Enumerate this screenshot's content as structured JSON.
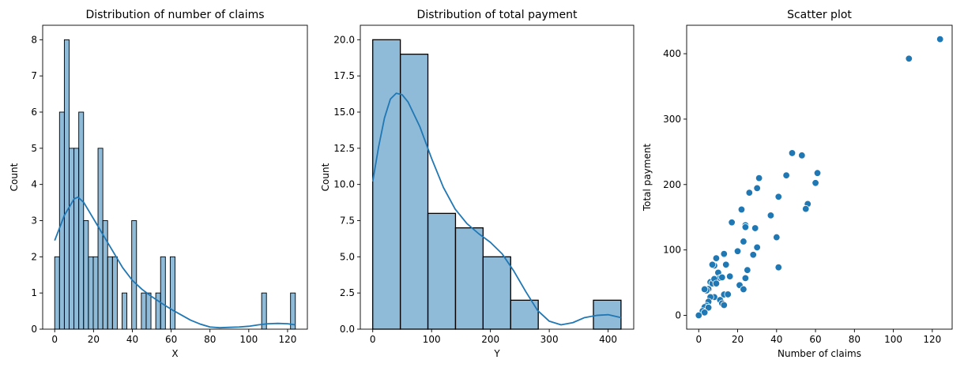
{
  "chart_data": [
    {
      "type": "bar",
      "title": "Distribution of number of claims",
      "xlabel": "X",
      "ylabel": "Count",
      "xlim": [
        -6.2,
        130.2
      ],
      "ylim": [
        0,
        8.4
      ],
      "xticks": [
        0,
        20,
        40,
        60,
        80,
        100,
        120
      ],
      "yticks": [
        0,
        1,
        2,
        3,
        4,
        5,
        6,
        7,
        8
      ],
      "bin_width": 2.48,
      "bins": [
        {
          "x0": 0.0,
          "count": 2
        },
        {
          "x0": 2.48,
          "count": 6
        },
        {
          "x0": 4.96,
          "count": 8
        },
        {
          "x0": 7.44,
          "count": 5
        },
        {
          "x0": 9.92,
          "count": 5
        },
        {
          "x0": 12.4,
          "count": 6
        },
        {
          "x0": 14.88,
          "count": 3
        },
        {
          "x0": 17.36,
          "count": 2
        },
        {
          "x0": 19.84,
          "count": 2
        },
        {
          "x0": 22.32,
          "count": 5
        },
        {
          "x0": 24.8,
          "count": 3
        },
        {
          "x0": 27.28,
          "count": 2
        },
        {
          "x0": 29.76,
          "count": 2
        },
        {
          "x0": 34.72,
          "count": 1
        },
        {
          "x0": 39.68,
          "count": 3
        },
        {
          "x0": 44.64,
          "count": 1
        },
        {
          "x0": 47.12,
          "count": 1
        },
        {
          "x0": 52.08,
          "count": 1
        },
        {
          "x0": 54.56,
          "count": 2
        },
        {
          "x0": 59.52,
          "count": 2
        },
        {
          "x0": 106.64,
          "count": 1
        },
        {
          "x0": 121.52,
          "count": 1
        }
      ],
      "kde": {
        "x": [
          0,
          5,
          10,
          12,
          15,
          20,
          25,
          30,
          35,
          40,
          45,
          50,
          55,
          60,
          65,
          70,
          75,
          80,
          85,
          90,
          95,
          100,
          105,
          110,
          115,
          120,
          124
        ],
        "y": [
          2.45,
          3.15,
          3.6,
          3.65,
          3.5,
          3.05,
          2.6,
          2.15,
          1.7,
          1.35,
          1.1,
          0.9,
          0.72,
          0.55,
          0.4,
          0.25,
          0.14,
          0.06,
          0.04,
          0.05,
          0.06,
          0.08,
          0.12,
          0.15,
          0.16,
          0.15,
          0.12
        ]
      },
      "color": "#1f77b4"
    },
    {
      "type": "bar",
      "title": "Distribution of total payment",
      "xlabel": "Y",
      "ylabel": "Count",
      "xlim": [
        -21.1,
        443.5
      ],
      "ylim": [
        0,
        21
      ],
      "xticks": [
        0,
        100,
        200,
        300,
        400
      ],
      "yticks": [
        0.0,
        2.5,
        5.0,
        7.5,
        10.0,
        12.5,
        15.0,
        17.5,
        20.0
      ],
      "bin_width": 46.88,
      "bins": [
        {
          "x0": 0.0,
          "count": 20
        },
        {
          "x0": 46.88,
          "count": 19
        },
        {
          "x0": 93.76,
          "count": 8
        },
        {
          "x0": 140.64,
          "count": 7
        },
        {
          "x0": 187.52,
          "count": 5
        },
        {
          "x0": 234.4,
          "count": 2
        },
        {
          "x0": 281.28,
          "count": 0
        },
        {
          "x0": 328.16,
          "count": 0
        },
        {
          "x0": 375.04,
          "count": 2
        }
      ],
      "kde": {
        "x": [
          0,
          10,
          20,
          30,
          40,
          50,
          60,
          80,
          100,
          120,
          140,
          160,
          180,
          200,
          220,
          240,
          260,
          280,
          300,
          320,
          340,
          360,
          380,
          400,
          422
        ],
        "y": [
          10.2,
          12.6,
          14.6,
          15.9,
          16.3,
          16.2,
          15.7,
          14.0,
          11.8,
          9.8,
          8.3,
          7.3,
          6.6,
          6.0,
          5.2,
          4.0,
          2.6,
          1.3,
          0.55,
          0.3,
          0.45,
          0.8,
          0.95,
          1.0,
          0.8
        ]
      },
      "color": "#1f77b4"
    },
    {
      "type": "scatter",
      "title": "Scatter plot",
      "xlabel": "Number of claims",
      "ylabel": "Total payment",
      "xlim": [
        -6.2,
        130.2
      ],
      "ylim": [
        -21.1,
        443.5
      ],
      "xticks": [
        0,
        20,
        40,
        60,
        80,
        100,
        120
      ],
      "yticks": [
        0,
        100,
        200,
        300,
        400
      ],
      "points": [
        [
          108,
          392.5
        ],
        [
          124,
          422.2
        ],
        [
          48,
          248.1
        ],
        [
          53,
          244.6
        ],
        [
          45,
          214.0
        ],
        [
          61,
          217.6
        ],
        [
          31,
          209.8
        ],
        [
          60,
          202.4
        ],
        [
          30,
          194.5
        ],
        [
          26,
          187.5
        ],
        [
          22,
          161.8
        ],
        [
          17,
          142.1
        ],
        [
          24,
          137.9
        ],
        [
          24,
          134.9
        ],
        [
          29,
          133.3
        ],
        [
          37,
          152.8
        ],
        [
          41,
          181.3
        ],
        [
          56,
          170.3
        ],
        [
          55,
          162.8
        ],
        [
          40,
          119.4
        ],
        [
          25,
          69.2
        ],
        [
          13,
          93.0
        ],
        [
          13,
          94.0
        ],
        [
          9,
          87.4
        ],
        [
          8,
          76.1
        ],
        [
          7,
          77.5
        ],
        [
          10,
          65.3
        ],
        [
          14,
          77.5
        ],
        [
          9,
          55.6
        ],
        [
          11,
          57.2
        ],
        [
          12,
          58.1
        ],
        [
          16,
          59.6
        ],
        [
          20,
          98.1
        ],
        [
          23,
          112.9
        ],
        [
          28,
          92.6
        ],
        [
          30,
          103.9
        ],
        [
          24,
          56.9
        ],
        [
          21,
          46.2
        ],
        [
          23,
          39.9
        ],
        [
          41,
          73.4
        ],
        [
          6,
          50.9
        ],
        [
          7,
          48.8
        ],
        [
          8,
          55.6
        ],
        [
          9,
          48.7
        ],
        [
          5,
          40.3
        ],
        [
          4,
          38.1
        ],
        [
          3,
          39.9
        ],
        [
          8,
          27.9
        ],
        [
          6,
          27.9
        ],
        [
          5,
          20.9
        ],
        [
          11,
          23.5
        ],
        [
          12,
          18.4
        ],
        [
          13,
          31.9
        ],
        [
          15,
          32.1
        ],
        [
          13,
          15.7
        ],
        [
          4,
          14.8
        ],
        [
          3,
          12.6
        ],
        [
          5,
          11.8
        ],
        [
          2,
          6.6
        ],
        [
          3,
          4.4
        ],
        [
          0,
          0.0
        ]
      ],
      "color": "#1f77b4"
    }
  ]
}
